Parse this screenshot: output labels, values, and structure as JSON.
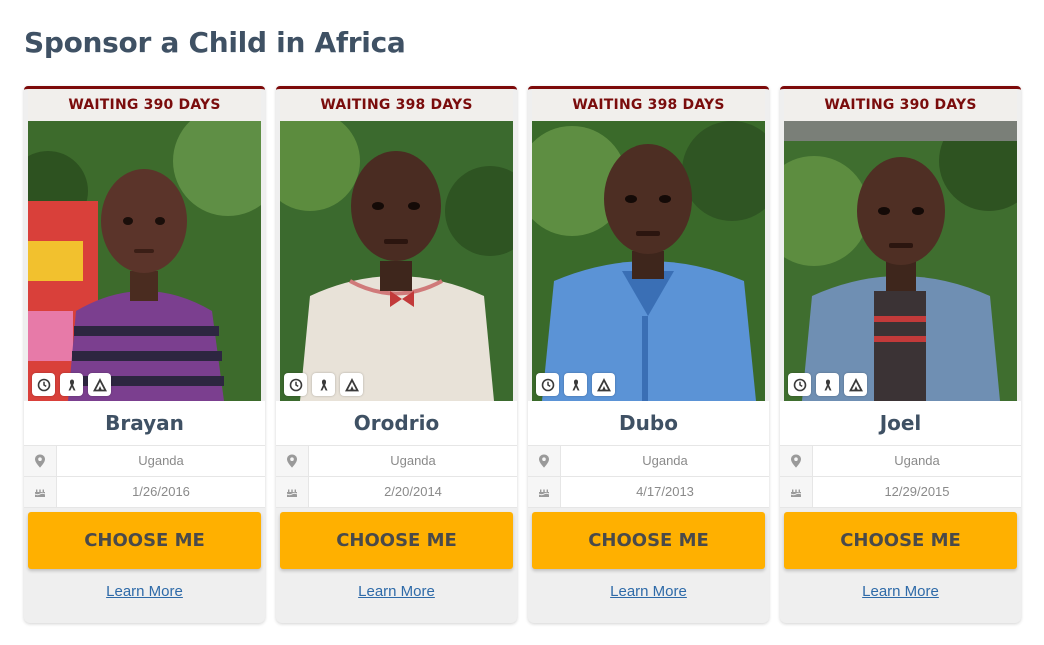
{
  "page": {
    "title": "Sponsor a Child in Africa"
  },
  "icons": {
    "badges": [
      "clock-icon",
      "ribbon-icon",
      "tent-icon"
    ],
    "location": "map-pin-icon",
    "birthday": "birthday-cake-icon"
  },
  "colors": {
    "title": "#3f5164",
    "waiting_text": "#7a0c0c",
    "card_top_border": "#7d0a0a",
    "choose_button": "#ffb000",
    "link": "#2e6aa8"
  },
  "cards": [
    {
      "waiting": "WAITING 390 DAYS",
      "name": "Brayan",
      "country": "Uganda",
      "birthdate": "1/26/2016",
      "cta": "CHOOSE ME",
      "link": "Learn More"
    },
    {
      "waiting": "WAITING 398 DAYS",
      "name": "Orodrio",
      "country": "Uganda",
      "birthdate": "2/20/2014",
      "cta": "CHOOSE ME",
      "link": "Learn More"
    },
    {
      "waiting": "WAITING 398 DAYS",
      "name": "Dubo",
      "country": "Uganda",
      "birthdate": "4/17/2013",
      "cta": "CHOOSE ME",
      "link": "Learn More"
    },
    {
      "waiting": "WAITING 390 DAYS",
      "name": "Joel",
      "country": "Uganda",
      "birthdate": "12/29/2015",
      "cta": "CHOOSE ME",
      "link": "Learn More"
    }
  ]
}
